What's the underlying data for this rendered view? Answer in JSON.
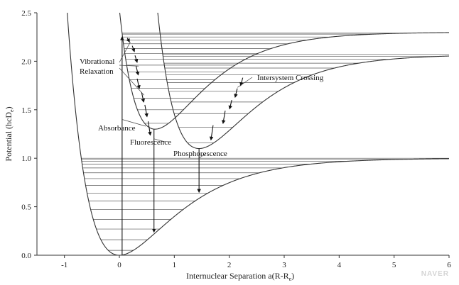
{
  "chart_data": {
    "type": "line",
    "title": "",
    "xlabel_main": "Internuclear Separation  a(R-R",
    "xlabel_sub": "e",
    "xlabel_close": ")",
    "ylabel_main": "Potential  (hcD",
    "ylabel_sub": "e",
    "ylabel_close": ")",
    "xlim": [
      -1.5,
      6
    ],
    "ylim": [
      0,
      2.5
    ],
    "xticks": [
      -1,
      0,
      1,
      2,
      3,
      4,
      5,
      6
    ],
    "xtick_labels": [
      "-1",
      "0",
      "1",
      "2",
      "3",
      "4",
      "5",
      "6"
    ],
    "yticks": [
      0,
      0.5,
      1.0,
      1.5,
      2.0,
      2.5
    ],
    "ytick_labels": [
      "0.0",
      "0.5",
      "1.0",
      "1.5",
      "2.0",
      "2.5"
    ],
    "grid": false,
    "series": [
      {
        "kind": "morse",
        "D": 1.0,
        "x0": 0.0,
        "a": 1.0,
        "E0": 0.0,
        "levels": [
          0.05,
          0.16,
          0.27,
          0.37,
          0.47,
          0.56,
          0.64,
          0.72,
          0.79,
          0.85,
          0.9,
          0.94,
          0.97,
          0.99,
          1.0
        ]
      },
      {
        "kind": "morse",
        "D": 1.0,
        "x0": 0.65,
        "a": 1.15,
        "E0": 1.3,
        "levels": [
          1.36,
          1.5,
          1.62,
          1.72,
          1.81,
          1.89,
          1.96,
          2.02,
          2.08,
          2.13,
          2.18,
          2.22,
          2.25,
          2.28,
          2.29
        ]
      },
      {
        "kind": "morse",
        "D": 0.97,
        "x0": 1.45,
        "a": 1.05,
        "E0": 1.1,
        "levels": [
          1.16,
          1.32,
          1.46,
          1.58,
          1.69,
          1.78,
          1.86,
          1.93,
          1.98,
          2.02,
          2.05,
          2.07
        ]
      }
    ],
    "annotations": {
      "vibrational": [
        "Vibrational",
        "Relaxation"
      ],
      "intersystem": "Intersystem Crossing",
      "absorbance": "Absorbance",
      "fluorescence": "Fluorescence",
      "phosphorescence": "Phosphorescence"
    },
    "transitions": {
      "absorbance": {
        "x": 0.05,
        "y_from": 0.0,
        "y_to": 2.25
      },
      "fluorescence": {
        "x": 0.63,
        "y_from": 1.3,
        "y_to": 0.24
      },
      "phosphorescence": {
        "x": 1.45,
        "y_from": 1.1,
        "y_to": 0.65
      },
      "relaxation_steps": [
        {
          "x": 0.17,
          "y_from": 2.24,
          "y_to": 2.2
        },
        {
          "x": 0.26,
          "y_from": 2.16,
          "y_to": 2.1
        },
        {
          "x": 0.31,
          "y_from": 2.06,
          "y_to": 1.99
        },
        {
          "x": 0.33,
          "y_from": 1.95,
          "y_to": 1.86
        },
        {
          "x": 0.35,
          "y_from": 1.82,
          "y_to": 1.72
        },
        {
          "x": 0.43,
          "y_from": 1.68,
          "y_to": 1.58
        },
        {
          "x": 0.49,
          "y_from": 1.55,
          "y_to": 1.43
        },
        {
          "x": 0.55,
          "y_from": 1.38,
          "y_to": 1.24
        }
      ],
      "crossing_steps": [
        {
          "x": 2.22,
          "y_from": 1.83,
          "y_to": 1.75
        },
        {
          "x": 2.12,
          "y_from": 1.72,
          "y_to": 1.63
        },
        {
          "x": 2.02,
          "y_from": 1.6,
          "y_to": 1.51
        },
        {
          "x": 1.9,
          "y_from": 1.49,
          "y_to": 1.36
        },
        {
          "x": 1.68,
          "y_from": 1.34,
          "y_to": 1.19
        }
      ]
    }
  },
  "watermark": "NAVER"
}
